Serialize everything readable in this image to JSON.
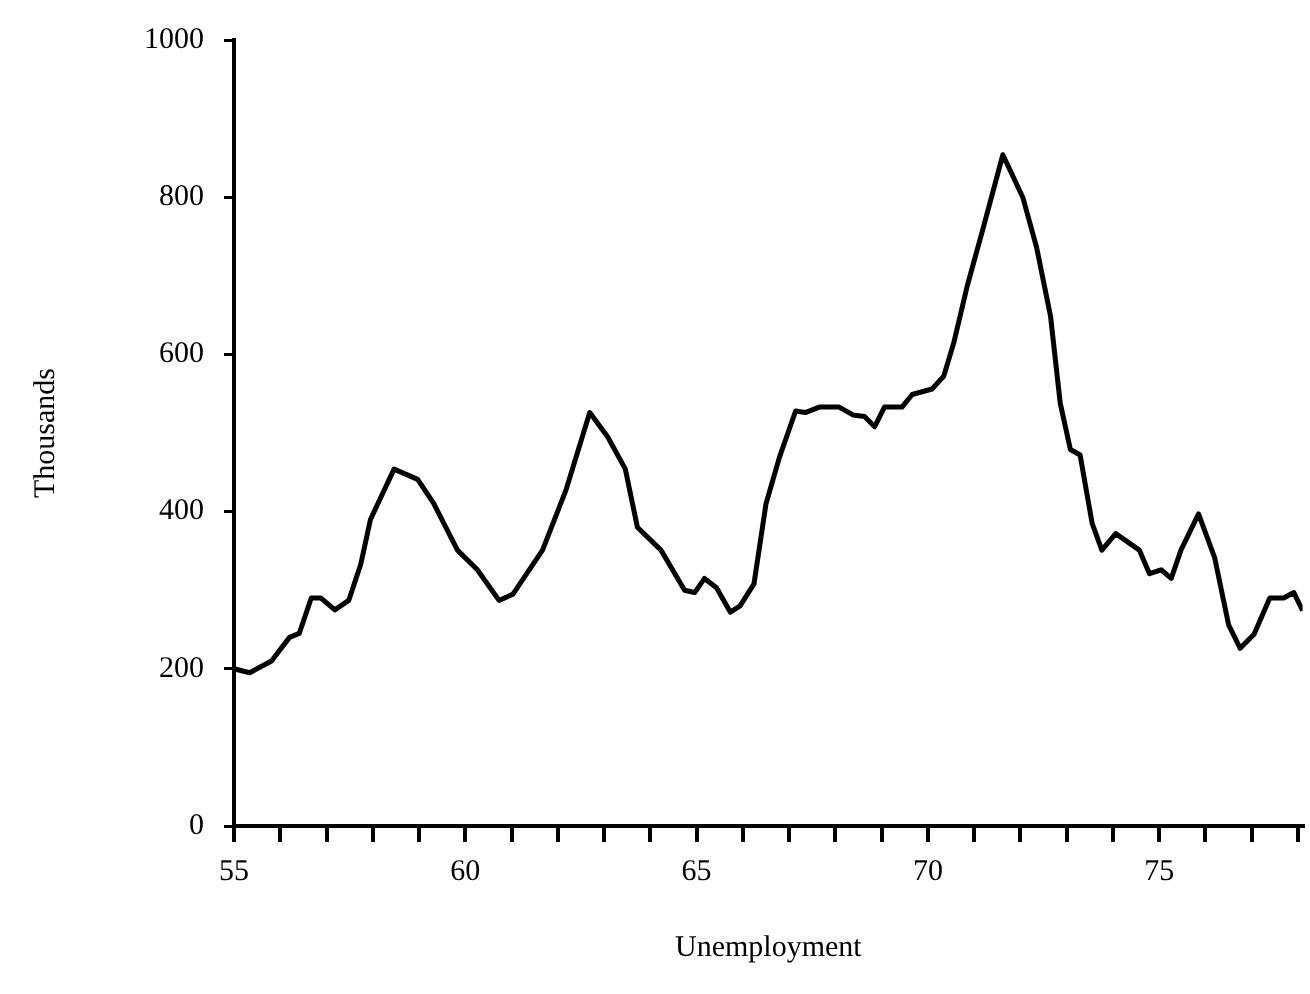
{
  "chart_data": {
    "type": "line",
    "xlabel": "Unemployment",
    "ylabel": "Thousands",
    "xlim": [
      55,
      78.1
    ],
    "xticks": [
      55,
      {
        "value": 56,
        "label": null
      },
      {
        "value": 57,
        "label": null
      },
      {
        "value": 58,
        "label": null
      },
      {
        "value": 59,
        "label": null
      },
      60,
      {
        "value": 61,
        "label": null
      },
      {
        "value": 62,
        "label": null
      },
      {
        "value": 63,
        "label": null
      },
      {
        "value": 64,
        "label": null
      },
      65,
      {
        "value": 66,
        "label": null
      },
      {
        "value": 67,
        "label": null
      },
      {
        "value": 68,
        "label": null
      },
      {
        "value": 69,
        "label": null
      },
      70,
      {
        "value": 71,
        "label": null
      },
      {
        "value": 72,
        "label": null
      },
      {
        "value": 73,
        "label": null
      },
      {
        "value": 74,
        "label": null
      },
      75,
      {
        "value": 76,
        "label": null
      },
      {
        "value": 77,
        "label": null
      },
      {
        "value": 78,
        "label": null
      }
    ],
    "ylim": [
      0,
      1000
    ],
    "yticks": [
      0,
      200,
      400,
      600,
      800,
      1000
    ],
    "grid": false,
    "legend": false,
    "marker": "none",
    "line_style": "solid",
    "series": [
      {
        "color": "#000000",
        "x": [
          55.0,
          55.34,
          55.81,
          56.2,
          56.41,
          56.67,
          56.88,
          57.18,
          57.48,
          57.74,
          57.95,
          58.46,
          58.97,
          59.32,
          59.83,
          60.26,
          60.73,
          61.03,
          61.67,
          62.18,
          62.69,
          63.08,
          63.46,
          63.72,
          64.23,
          64.74,
          64.96,
          65.17,
          65.43,
          65.73,
          65.94,
          66.24,
          66.5,
          66.79,
          67.14,
          67.35,
          67.65,
          68.08,
          68.38,
          68.63,
          68.85,
          69.06,
          69.44,
          69.66,
          70.09,
          70.34,
          70.56,
          70.85,
          71.2,
          71.62,
          72.05,
          72.35,
          72.65,
          72.86,
          73.08,
          73.29,
          73.55,
          73.76,
          74.06,
          74.57,
          74.79,
          75.04,
          75.26,
          75.47,
          75.85,
          76.2,
          76.5,
          76.75,
          77.05,
          77.39,
          77.69,
          77.91,
          78.1
        ],
        "values": [
          200,
          195,
          210,
          240,
          245,
          290,
          290,
          275,
          287,
          333,
          390,
          454,
          441,
          410,
          351,
          326,
          287,
          295,
          351,
          428,
          526,
          495,
          454,
          380,
          351,
          300,
          297,
          315,
          303,
          272,
          280,
          308,
          410,
          469,
          528,
          526,
          533,
          533,
          523,
          521,
          508,
          533,
          533,
          549,
          556,
          572,
          615,
          687,
          762,
          854,
          800,
          736,
          649,
          538,
          479,
          472,
          385,
          351,
          372,
          351,
          321,
          326,
          315,
          351,
          397,
          341,
          256,
          226,
          244,
          290,
          290,
          297,
          274
        ]
      }
    ]
  }
}
